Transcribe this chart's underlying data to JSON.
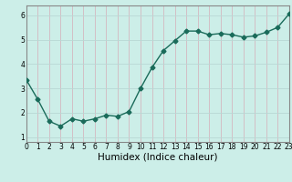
{
  "x": [
    0,
    1,
    2,
    3,
    4,
    5,
    6,
    7,
    8,
    9,
    10,
    11,
    12,
    13,
    14,
    15,
    16,
    17,
    18,
    19,
    20,
    21,
    22,
    23
  ],
  "y": [
    3.35,
    2.55,
    1.65,
    1.45,
    1.75,
    1.65,
    1.75,
    1.9,
    1.85,
    2.05,
    3.0,
    3.85,
    4.55,
    4.95,
    5.35,
    5.35,
    5.2,
    5.25,
    5.2,
    5.1,
    5.15,
    5.3,
    5.5,
    6.05
  ],
  "line_color": "#1a6b5a",
  "marker": "D",
  "marker_size": 2.5,
  "bg_color": "#cceee8",
  "grid_color_x": "#d4b8c0",
  "grid_color_y": "#b8d8d4",
  "xlabel": "Humidex (Indice chaleur)",
  "xlim": [
    0,
    23
  ],
  "ylim": [
    0.8,
    6.4
  ],
  "yticks": [
    1,
    2,
    3,
    4,
    5,
    6
  ],
  "xticks": [
    0,
    1,
    2,
    3,
    4,
    5,
    6,
    7,
    8,
    9,
    10,
    11,
    12,
    13,
    14,
    15,
    16,
    17,
    18,
    19,
    20,
    21,
    22,
    23
  ],
  "tick_fontsize": 5.5,
  "xlabel_fontsize": 7.5,
  "line_width": 1.0,
  "spine_color": "#888888"
}
